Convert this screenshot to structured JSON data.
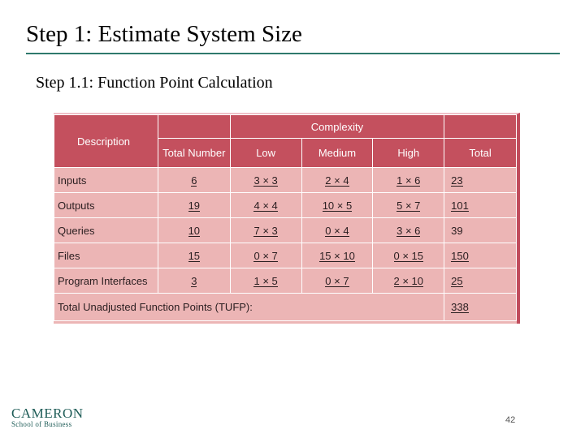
{
  "slide": {
    "title": "Step 1: Estimate System Size",
    "subtitle": "Step 1.1: Function Point Calculation",
    "page_number": "42"
  },
  "table": {
    "header": {
      "description": "Description",
      "complexity": "Complexity",
      "total_number": "Total Number",
      "low": "Low",
      "medium": "Medium",
      "high": "High",
      "total": "Total"
    },
    "rows": [
      {
        "label": "Inputs",
        "total_number": "6",
        "low": "3 × 3",
        "medium": "2 × 4",
        "high": "1 × 6",
        "total": "23"
      },
      {
        "label": "Outputs",
        "total_number": "19",
        "low": "4 × 4",
        "medium": "10 × 5",
        "high": "5 × 7",
        "total": "101"
      },
      {
        "label": "Queries",
        "total_number": "10",
        "low": "7 × 3",
        "medium": "0 × 4",
        "high": "3 × 6",
        "total": "39"
      },
      {
        "label": "Files",
        "total_number": "15",
        "low": "0 × 7",
        "medium": "15 × 10",
        "high": "0 × 15",
        "total": "150"
      },
      {
        "label": "Program Interfaces",
        "total_number": "3",
        "low": "1 × 5",
        "medium": "0 × 7",
        "high": "2 × 10",
        "total": "25"
      }
    ],
    "footer": {
      "label": "Total Unadjusted Function Points (TUFP):",
      "value": "338"
    }
  },
  "logo": {
    "line1": "CAMERON",
    "line2": "School of Business"
  }
}
